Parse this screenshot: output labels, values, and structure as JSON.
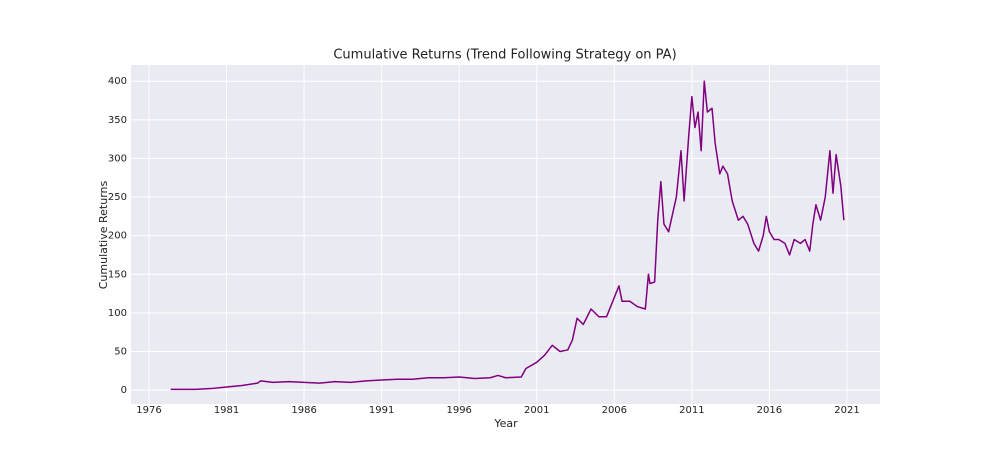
{
  "chart_data": {
    "type": "line",
    "title": "Cumulative Returns (Trend Following Strategy on PA)",
    "x_label": "Year",
    "y_label": "Cumulative Returns",
    "x": [
      1977.4,
      1979,
      1980,
      1981,
      1982,
      1983,
      1983.2,
      1984,
      1985,
      1986,
      1987,
      1988,
      1989,
      1990,
      1991,
      1992,
      1993,
      1994,
      1995,
      1996,
      1997,
      1998,
      1998.5,
      1999,
      2000,
      2000.3,
      2001,
      2001.5,
      2002,
      2002.5,
      2003,
      2003.3,
      2003.6,
      2004,
      2004.5,
      2005,
      2005.5,
      2006,
      2006.3,
      2006.5,
      2007,
      2007.5,
      2008,
      2008.2,
      2008.3,
      2008.6,
      2008.8,
      2009,
      2009.2,
      2009.5,
      2010,
      2010.3,
      2010.5,
      2010.8,
      2011,
      2011.2,
      2011.4,
      2011.6,
      2011.8,
      2012,
      2012.3,
      2012.5,
      2012.8,
      2013,
      2013.3,
      2013.6,
      2014,
      2014.3,
      2014.6,
      2015,
      2015.3,
      2015.6,
      2015.8,
      2016,
      2016.3,
      2016.6,
      2017,
      2017.3,
      2017.6,
      2018,
      2018.3,
      2018.6,
      2018.8,
      2019,
      2019.3,
      2019.6,
      2019.9,
      2020.1,
      2020.3,
      2020.6,
      2020.8
    ],
    "series": [
      {
        "name": "Cumulative Returns",
        "color": "#800080",
        "values": [
          1,
          1,
          2,
          4,
          6,
          9,
          12,
          10,
          11,
          10,
          9,
          11,
          10,
          12,
          13,
          14,
          14,
          16,
          16,
          17,
          15,
          16,
          19,
          16,
          17,
          28,
          36,
          45,
          58,
          50,
          52,
          65,
          93,
          85,
          105,
          95,
          95,
          120,
          135,
          115,
          115,
          108,
          105,
          150,
          138,
          140,
          220,
          270,
          215,
          205,
          250,
          310,
          245,
          330,
          380,
          340,
          360,
          310,
          400,
          360,
          365,
          320,
          280,
          290,
          280,
          245,
          220,
          225,
          215,
          190,
          180,
          200,
          225,
          205,
          195,
          195,
          190,
          175,
          195,
          190,
          195,
          180,
          215,
          240,
          220,
          250,
          310,
          255,
          305,
          265,
          220
        ]
      }
    ],
    "xlim": [
      1974.84,
      2023.13
    ],
    "ylim": [
      -18,
      421
    ],
    "xticks": [
      1976,
      1981,
      1986,
      1991,
      1996,
      2001,
      2006,
      2011,
      2016,
      2021
    ],
    "yticks": [
      0,
      50,
      100,
      150,
      200,
      250,
      300,
      350,
      400
    ],
    "grid": true
  }
}
